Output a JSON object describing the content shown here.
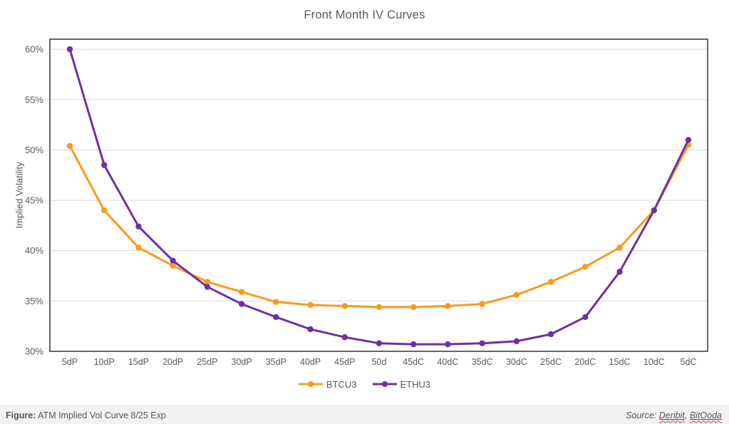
{
  "colors": {
    "btc": "#F79C1C",
    "eth": "#7030A0",
    "grid": "#D9D9D9",
    "axis_border": "#262626",
    "text": "#595959",
    "footer_bg": "#F2F2F2"
  },
  "chart_data": {
    "type": "line",
    "title": "Front Month IV Curves",
    "xlabel": "",
    "ylabel": "Implied Volatility",
    "categories": [
      "5dP",
      "10dP",
      "15dP",
      "20dP",
      "25dP",
      "30dP",
      "35dP",
      "40dP",
      "45dP",
      "50d",
      "45dC",
      "40dC",
      "35dC",
      "30dC",
      "25dC",
      "20dC",
      "15dC",
      "10dC",
      "5dC"
    ],
    "series": [
      {
        "name": "BTCU3",
        "color": "#F79C1C",
        "values": [
          50.4,
          44.0,
          40.3,
          38.5,
          36.9,
          35.9,
          34.9,
          34.6,
          34.5,
          34.4,
          34.4,
          34.5,
          34.7,
          35.6,
          36.9,
          38.4,
          40.3,
          44.0,
          50.5
        ]
      },
      {
        "name": "ETHU3",
        "color": "#7030A0",
        "values": [
          60.0,
          48.5,
          42.4,
          39.0,
          36.4,
          34.7,
          33.4,
          32.2,
          31.4,
          30.8,
          30.7,
          30.7,
          30.8,
          31.0,
          31.7,
          33.4,
          37.9,
          44.0,
          51.0
        ]
      }
    ],
    "ylim": [
      30,
      61
    ],
    "yticks": [
      30,
      35,
      40,
      45,
      50,
      55,
      60
    ],
    "ytick_format": "{v}%",
    "grid": true,
    "legend_position": "bottom"
  },
  "footer": {
    "figure_label": "Figure:",
    "figure_text": " ATM Implied Vol Curve 8/25 Exp",
    "source_label": "Source: ",
    "sources": [
      "Deribit",
      "BitOoda"
    ],
    "source_separator": ", "
  }
}
